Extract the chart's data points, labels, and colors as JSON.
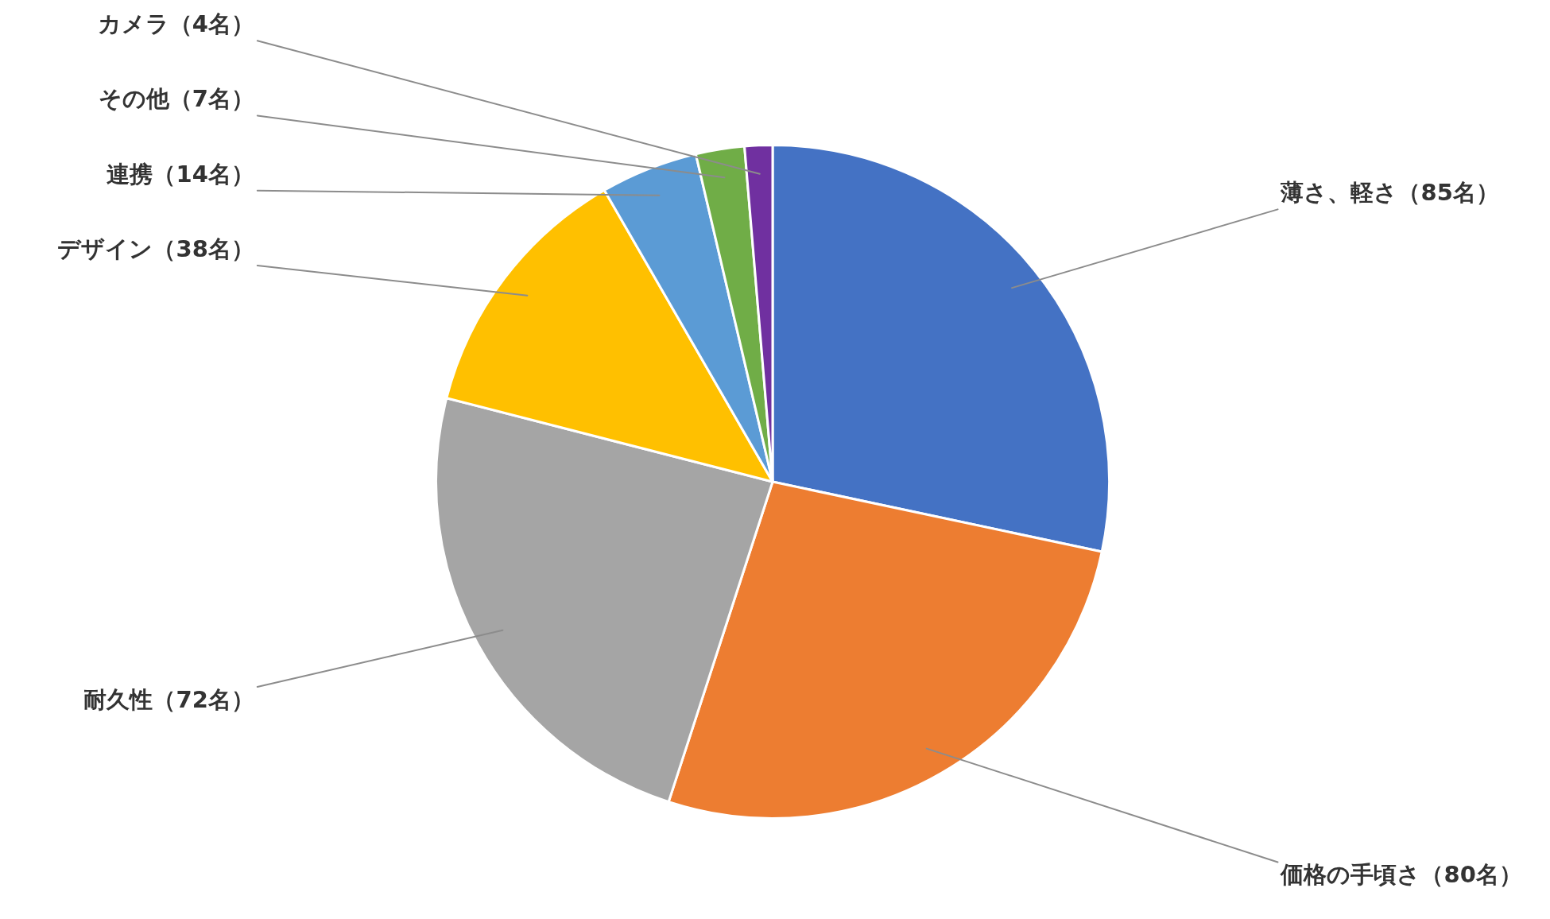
{
  "chart_data": {
    "type": "pie",
    "categories": [
      "薄さ、軽さ（85名）",
      "価格の手頃さ（80名）",
      "耐久性（72名）",
      "デザイン（38名）",
      "連携（14名）",
      "その他（7名）",
      "カメラ（4名）"
    ],
    "values": [
      85,
      80,
      72,
      38,
      14,
      7,
      4
    ],
    "colors": [
      "#4472c4",
      "#ed7d31",
      "#a5a5a5",
      "#ffc000",
      "#5b9bd5",
      "#70ad47",
      "#7030a0"
    ]
  }
}
